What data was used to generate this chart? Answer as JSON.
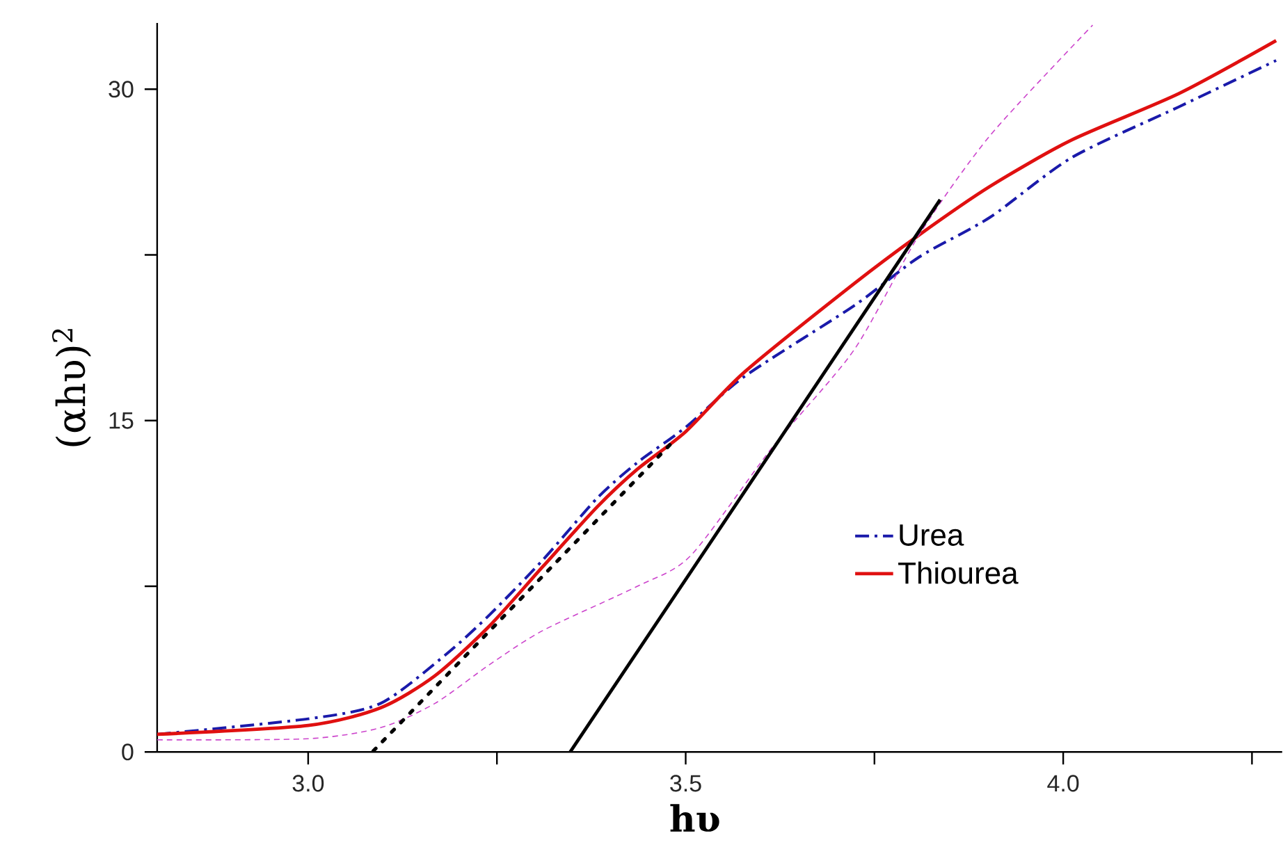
{
  "chart_data": {
    "type": "line",
    "xlabel": "**hυ**",
    "ylabel": "(αhυ)$^{2}$",
    "xlim": [
      2.8,
      4.29
    ],
    "ylim": [
      0,
      33
    ],
    "xticks": [
      {
        "value": 3.0,
        "label": "3.0"
      },
      {
        "value": 3.25,
        "label": null
      },
      {
        "value": 3.5,
        "label": "3.5"
      },
      {
        "value": 3.75,
        "label": null
      },
      {
        "value": 4.0,
        "label": "4.0"
      },
      {
        "value": 4.25,
        "label": null
      }
    ],
    "yticks": [
      0,
      {
        "value": 7.5,
        "label": null
      },
      15,
      {
        "value": 22.5,
        "label": null
      },
      30
    ],
    "grid": false,
    "legend": "bottom right",
    "series": [
      {
        "name": "Urea",
        "color": "#1a1aaa",
        "line_style": "dashdot",
        "x": [
          2.8,
          3.0,
          3.096,
          3.182,
          3.24,
          3.311,
          3.383,
          3.436,
          3.5,
          3.578,
          3.723,
          3.809,
          3.903,
          4.011,
          4.153,
          4.282
        ],
        "values": [
          0.8,
          1.5,
          2.2,
          4.4,
          6.2,
          8.7,
          11.5,
          13.1,
          14.7,
          17.0,
          20.2,
          22.4,
          24.2,
          26.9,
          29.2,
          31.3
        ]
      },
      {
        "name": "Thiourea",
        "color": "#e01010",
        "line_style": "solid",
        "x": [
          2.8,
          3.0,
          3.096,
          3.168,
          3.24,
          3.311,
          3.383,
          3.436,
          3.5,
          3.578,
          3.723,
          3.809,
          3.903,
          4.011,
          4.153,
          4.282
        ],
        "values": [
          0.8,
          1.2,
          2.0,
          3.45,
          5.7,
          8.4,
          11.1,
          12.8,
          14.5,
          17.2,
          21.2,
          23.4,
          25.6,
          27.7,
          29.8,
          32.2
        ]
      },
      {
        "color": "#cc44cc",
        "line_style": "dashed",
        "x": [
          2.8,
          3.0,
          3.096,
          3.168,
          3.24,
          3.311,
          3.436,
          3.507,
          3.615,
          3.723,
          3.809,
          3.903,
          4.039
        ],
        "values": [
          0.55,
          0.6,
          1.1,
          2.2,
          3.95,
          5.5,
          7.5,
          8.9,
          13.8,
          18.2,
          23.4,
          27.9,
          32.9
        ]
      },
      {
        "color": "#000000",
        "line_style": "solid",
        "x": [
          3.837,
          3.347
        ],
        "values": [
          25.0,
          0
        ]
      },
      {
        "color": "#000000",
        "line_style": "dotted",
        "x": [
          3.479,
          3.085
        ],
        "values": [
          13.9,
          0
        ]
      }
    ]
  }
}
